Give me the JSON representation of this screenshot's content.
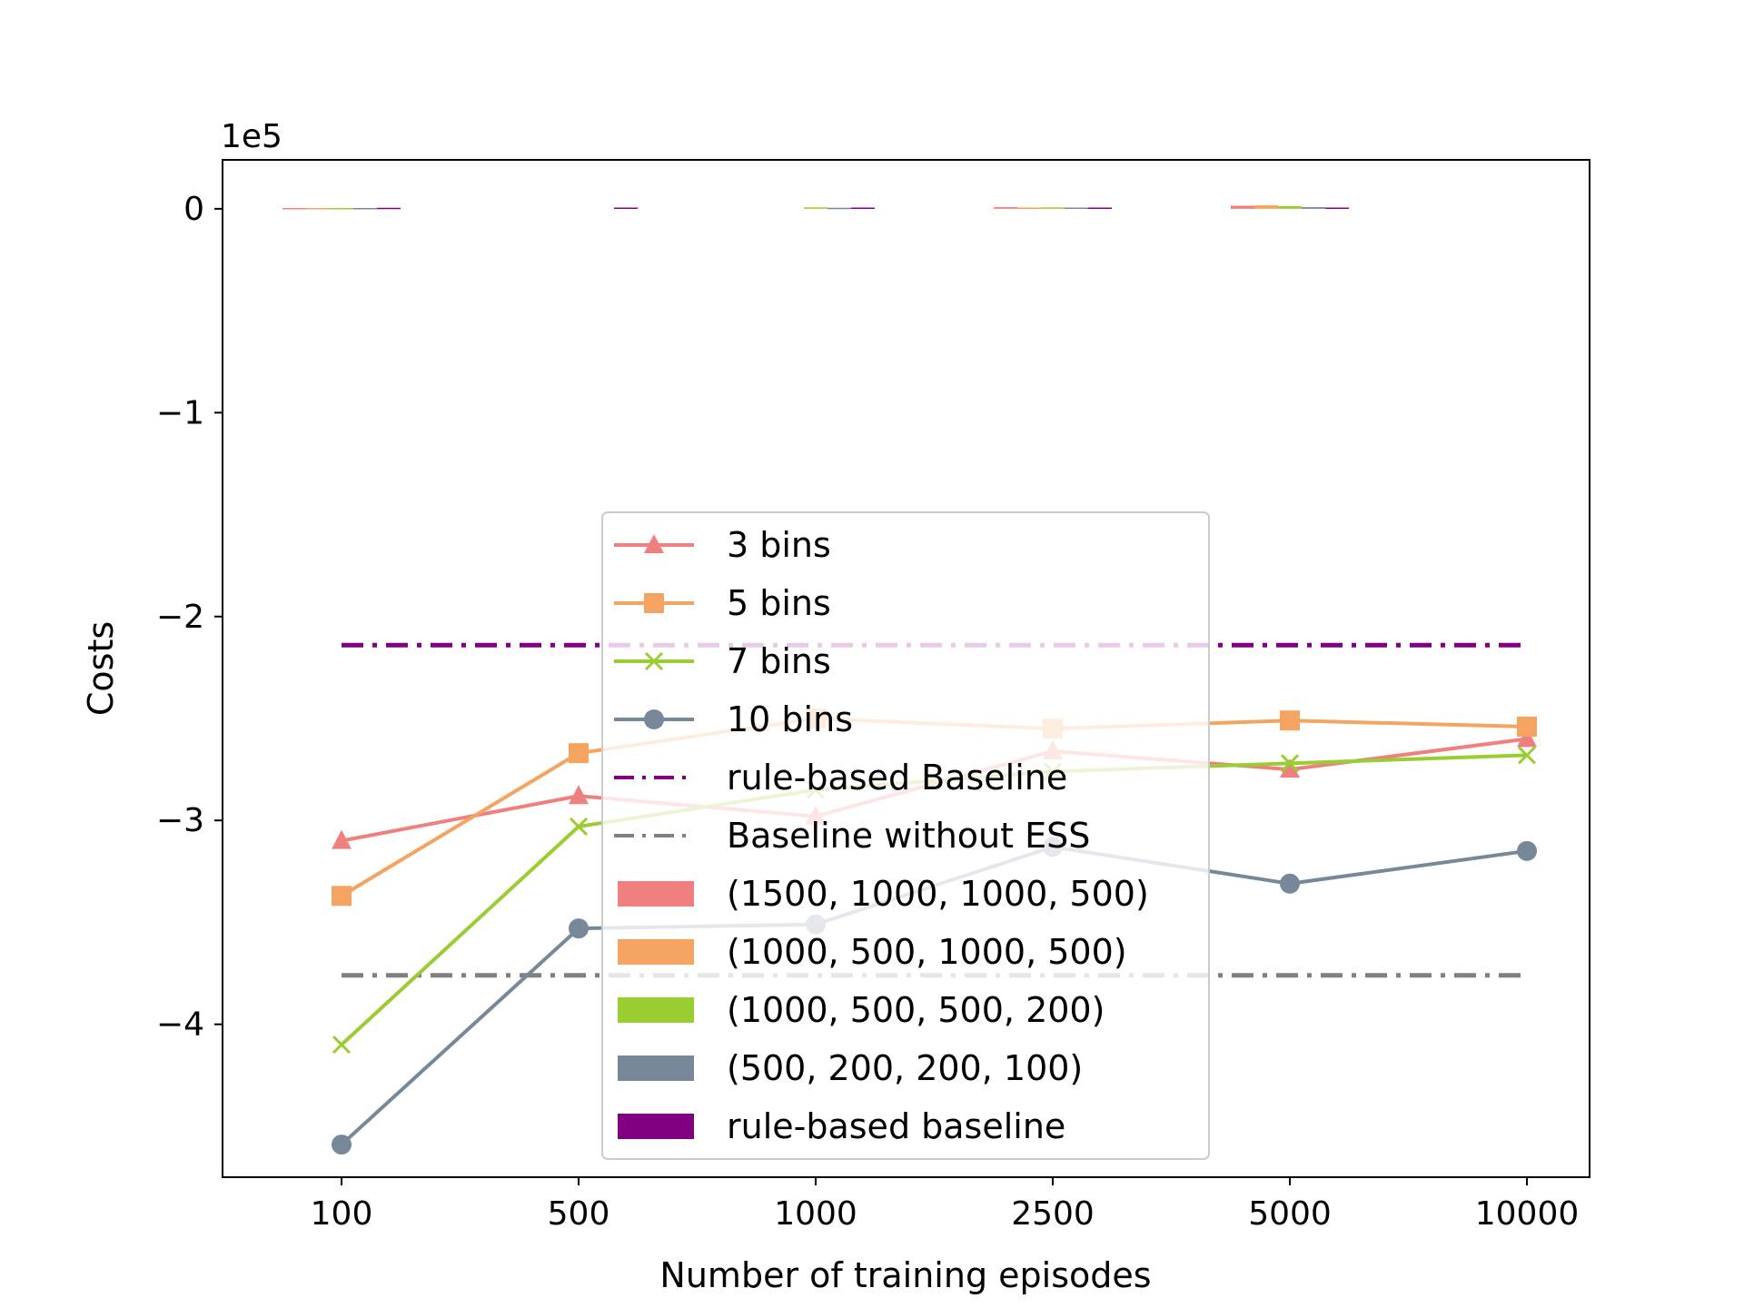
{
  "chart_data": {
    "type": "line",
    "xlabel": "Number of training episodes",
    "ylabel": "Costs",
    "y_offset_label": "1e5",
    "y_scale": 100000,
    "categories": [
      "100",
      "500",
      "1000",
      "2500",
      "5000",
      "10000"
    ],
    "ylim": [
      -475000,
      24000
    ],
    "yticks": [
      0,
      -100000,
      -200000,
      -300000,
      -400000
    ],
    "ytick_labels": [
      "0",
      "−1",
      "−2",
      "−3",
      "−4"
    ],
    "grid": false,
    "legend_position": "center-bottom",
    "series": [
      {
        "name": "3 bins",
        "color": "#f08080",
        "marker": "triangle",
        "values": [
          -310000,
          -288000,
          -298000,
          -266000,
          -275000,
          -260000
        ]
      },
      {
        "name": "5 bins",
        "color": "#f4a460",
        "marker": "square",
        "values": [
          -337000,
          -267000,
          -250000,
          -255000,
          -251000,
          -254000
        ]
      },
      {
        "name": "7 bins",
        "color": "#9acd32",
        "marker": "x",
        "values": [
          -410000,
          -303000,
          -285000,
          -276000,
          -272000,
          -268000
        ]
      },
      {
        "name": "10 bins",
        "color": "#778899",
        "marker": "circle",
        "values": [
          -459000,
          -353000,
          -351000,
          -313000,
          -331000,
          -315000
        ]
      }
    ],
    "baselines": [
      {
        "name": "rule-based Baseline",
        "color": "#800080",
        "value": -214000
      },
      {
        "name": "Baseline without ESS",
        "color": "#808080",
        "value": -376000
      }
    ],
    "bar_series": [
      {
        "name": "(1500, 1000, 1000, 500)",
        "color": "#f08080",
        "values": [
          400,
          0,
          0,
          800,
          1500,
          0
        ]
      },
      {
        "name": "(1000, 500, 1000, 500)",
        "color": "#f4a460",
        "values": [
          400,
          0,
          0,
          600,
          1700,
          0
        ]
      },
      {
        "name": "(1000, 500, 500, 200)",
        "color": "#9acd32",
        "values": [
          400,
          0,
          700,
          700,
          1300,
          0
        ]
      },
      {
        "name": "(500, 200, 200, 100)",
        "color": "#778899",
        "values": [
          400,
          0,
          500,
          600,
          800,
          0
        ]
      },
      {
        "name": "rule-based baseline",
        "color": "#800080",
        "values": [
          500,
          600,
          600,
          600,
          600,
          0
        ]
      }
    ]
  }
}
